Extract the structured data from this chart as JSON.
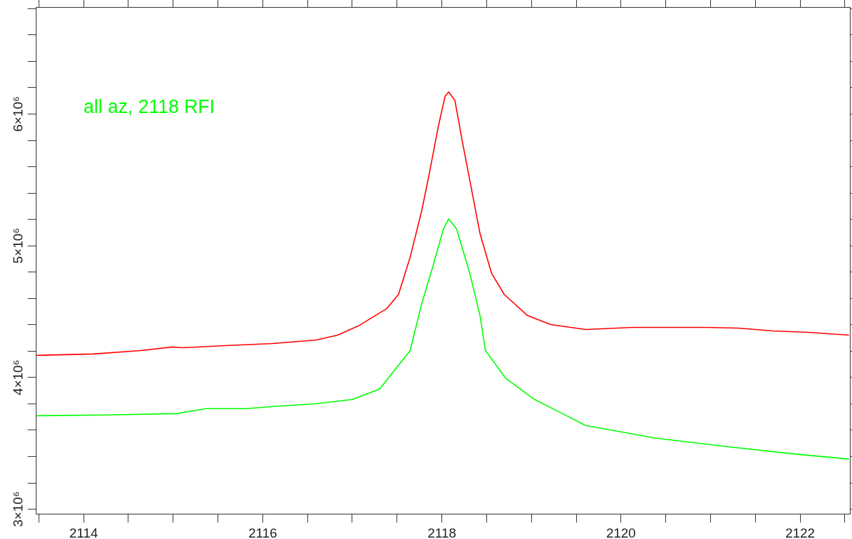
{
  "chart_data": {
    "type": "line",
    "x": [
      2113.48,
      2114.11,
      2114.64,
      2115.0,
      2115.11,
      2115.58,
      2116.11,
      2116.6,
      2116.84,
      2117.07,
      2117.39,
      2117.52,
      2117.65,
      2117.78,
      2117.86,
      2117.96,
      2118.04,
      2118.08,
      2118.15,
      2118.23,
      2118.31,
      2118.43,
      2118.56,
      2118.7,
      2118.96,
      2119.22,
      2119.61,
      2120.13,
      2120.92,
      2121.31,
      2121.7,
      2122.09,
      2122.55
    ],
    "series": [
      {
        "color": "#ff0000",
        "values": [
          4165000,
          4176000,
          4202000,
          4229000,
          4223000,
          4239000,
          4255000,
          4282000,
          4319000,
          4388000,
          4521000,
          4628000,
          4910000,
          5266000,
          5532000,
          5888000,
          6133000,
          6165000,
          6101000,
          5798000,
          5516000,
          5090000,
          4787000,
          4628000,
          4468000,
          4399000,
          4362000,
          4378000,
          4378000,
          4372000,
          4351000,
          4340000,
          4319000
        ]
      },
      {
        "name": "all az, 2118 RFI",
        "color": "#00ff00",
        "x": [
          2113.48,
          2114.25,
          2115.04,
          2115.37,
          2115.82,
          2116.11,
          2116.6,
          2117.0,
          2117.31,
          2117.65,
          2117.78,
          2117.91,
          2118.02,
          2118.08,
          2118.17,
          2118.31,
          2118.43,
          2118.49,
          2118.72,
          2119.04,
          2119.35,
          2119.61,
          2120.39,
          2121.18,
          2121.96,
          2122.55
        ],
        "values": [
          3707000,
          3713000,
          3723000,
          3761000,
          3761000,
          3777000,
          3798000,
          3830000,
          3910000,
          4202000,
          4559000,
          4856000,
          5122000,
          5202000,
          5122000,
          4803000,
          4468000,
          4202000,
          3989000,
          3830000,
          3723000,
          3633000,
          3537000,
          3473000,
          3415000,
          3378000
        ]
      }
    ],
    "xlim": [
      2113.47,
      2122.56
    ],
    "xticks": [
      {
        "value": 2113.5,
        "label": null
      },
      2114,
      {
        "value": 2114.5,
        "label": null
      },
      {
        "value": 2115,
        "label": null
      },
      {
        "value": 2115.5,
        "label": null
      },
      2116,
      {
        "value": 2116.5,
        "label": null
      },
      {
        "value": 2117,
        "label": null
      },
      {
        "value": 2117.5,
        "label": null
      },
      2118,
      {
        "value": 2118.5,
        "label": null
      },
      {
        "value": 2119,
        "label": null
      },
      {
        "value": 2119.5,
        "label": null
      },
      2120,
      {
        "value": 2120.5,
        "label": null
      },
      {
        "value": 2121,
        "label": null
      },
      {
        "value": 2121.5,
        "label": null
      },
      2122,
      {
        "value": 2122.5,
        "label": null
      }
    ],
    "ylim": [
      2963000,
      6810000
    ],
    "yticks": [
      {
        "value": 3000000,
        "label": "3×10⁶"
      },
      {
        "value": 3200000,
        "label": null
      },
      {
        "value": 3400000,
        "label": null
      },
      {
        "value": 3600000,
        "label": null
      },
      {
        "value": 3800000,
        "label": null
      },
      {
        "value": 4000000,
        "label": "4×10⁶"
      },
      {
        "value": 4200000,
        "label": null
      },
      {
        "value": 4400000,
        "label": null
      },
      {
        "value": 4600000,
        "label": null
      },
      {
        "value": 4800000,
        "label": null
      },
      {
        "value": 5000000,
        "label": "5×10⁶"
      },
      {
        "value": 5200000,
        "label": null
      },
      {
        "value": 5400000,
        "label": null
      },
      {
        "value": 5600000,
        "label": null
      },
      {
        "value": 5800000,
        "label": null
      },
      {
        "value": 6000000,
        "label": "6×10⁶"
      },
      {
        "value": 6200000,
        "label": null
      },
      {
        "value": 6400000,
        "label": null
      },
      {
        "value": 6600000,
        "label": null
      },
      {
        "value": 6800000,
        "label": null
      }
    ],
    "grid": false,
    "legend": false
  }
}
